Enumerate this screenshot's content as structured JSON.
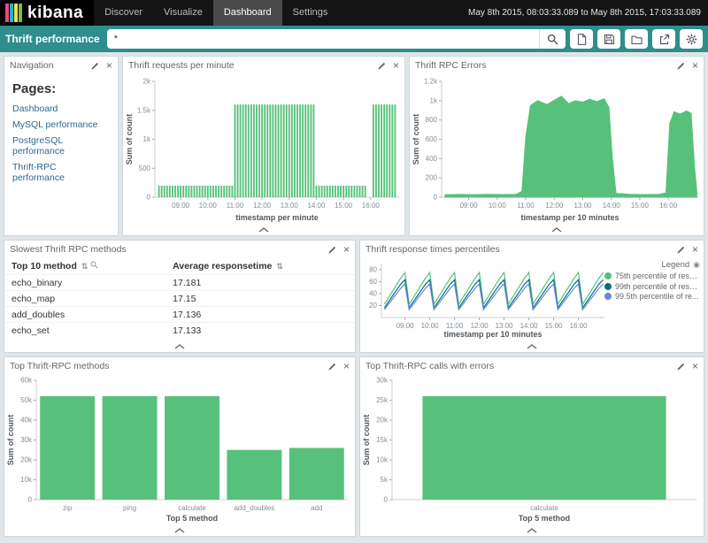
{
  "topbar": {
    "logo": "kibana",
    "nav": [
      {
        "label": "Discover",
        "active": false
      },
      {
        "label": "Visualize",
        "active": false
      },
      {
        "label": "Dashboard",
        "active": true
      },
      {
        "label": "Settings",
        "active": false
      }
    ],
    "time_range": "May 8th 2015, 08:03:33.089 to May 8th 2015, 17:03:33.089"
  },
  "querybar": {
    "title": "Thrift performance",
    "query": "*",
    "icons": [
      "search-icon",
      "new-dashboard-icon",
      "save-dashboard-icon",
      "load-dashboard-icon",
      "share-dashboard-icon",
      "settings-gear-icon"
    ]
  },
  "glyphs": {
    "close": "×",
    "sort": "⇅",
    "legend_toggle": "◉"
  },
  "panels": {
    "navigation": {
      "title": "Navigation",
      "heading": "Pages:",
      "links": [
        "Dashboard",
        "MySQL performance",
        "PostgreSQL performance",
        "Thrift-RPC performance"
      ]
    },
    "requests": {
      "title": "Thrift requests per minute"
    },
    "errors": {
      "title": "Thrift RPC Errors"
    },
    "slowest": {
      "title": "Slowest Thrift RPC methods",
      "table": {
        "columns": [
          "Top 10 method",
          "Average responsetime"
        ],
        "rows": [
          [
            "echo_binary",
            "17.181"
          ],
          [
            "echo_map",
            "17.15"
          ],
          [
            "add_doubles",
            "17.136"
          ],
          [
            "echo_set",
            "17.133"
          ]
        ]
      }
    },
    "percentiles": {
      "title": "Thrift response times percentiles",
      "legend_title": "Legend"
    },
    "top_methods": {
      "title": "Top Thrift-RPC methods"
    },
    "top_errors": {
      "title": "Top Thrift-RPC calls with errors"
    }
  },
  "colors": {
    "green": "#57c17b",
    "navy": "#006e8a",
    "periwinkle": "#6f87d8",
    "teal_bar": "#2e8d8d",
    "topbar": "#141414",
    "logo_stripes": [
      "#e8488b",
      "#19b8c6",
      "#f2de54",
      "#80bb44"
    ]
  },
  "chart_data": {
    "requests": {
      "type": "bar",
      "title": "Thrift requests per minute",
      "xlabel": "timestamp per minute",
      "ylabel": "Sum of count",
      "color": "#57c17b",
      "x_domain": [
        "08:03",
        "17:03"
      ],
      "x_ticks": [
        "09:00",
        "10:00",
        "11:00",
        "12:00",
        "13:00",
        "14:00",
        "15:00",
        "16:00"
      ],
      "ylim": [
        0,
        2000
      ],
      "y_ticks": [
        {
          "v": 0,
          "l": "0"
        },
        {
          "v": 500,
          "l": "500"
        },
        {
          "v": 1000,
          "l": "1k"
        },
        {
          "v": 1500,
          "l": "1.5k"
        },
        {
          "v": 2000,
          "l": "2k"
        }
      ],
      "bucket_minutes": 6,
      "segments": [
        {
          "from": "08:12",
          "to": "10:58",
          "value": 200
        },
        {
          "from": "11:00",
          "to": "13:58",
          "value": 1600
        },
        {
          "from": "14:00",
          "to": "15:52",
          "value": 200
        },
        {
          "from": "16:06",
          "to": "16:58",
          "value": 1600
        }
      ]
    },
    "errors": {
      "type": "area",
      "title": "Thrift RPC Errors",
      "xlabel": "timestamp per 10 minutes",
      "ylabel": "Sum of count",
      "color": "#57c17b",
      "x_domain": [
        "08:03",
        "17:03"
      ],
      "x_ticks": [
        "09:00",
        "10:00",
        "11:00",
        "12:00",
        "13:00",
        "14:00",
        "15:00",
        "16:00"
      ],
      "ylim": [
        0,
        1200
      ],
      "y_ticks": [
        {
          "v": 0,
          "l": "0"
        },
        {
          "v": 200,
          "l": "200"
        },
        {
          "v": 400,
          "l": "400"
        },
        {
          "v": 600,
          "l": "600"
        },
        {
          "v": 800,
          "l": "800"
        },
        {
          "v": 1000,
          "l": "1k"
        },
        {
          "v": 1200,
          "l": "1.2k"
        }
      ],
      "points": [
        [
          "08:10",
          25
        ],
        [
          "08:40",
          30
        ],
        [
          "09:10",
          26
        ],
        [
          "09:40",
          30
        ],
        [
          "10:10",
          27
        ],
        [
          "10:40",
          30
        ],
        [
          "10:52",
          60
        ],
        [
          "11:00",
          620
        ],
        [
          "11:10",
          950
        ],
        [
          "11:25",
          1000
        ],
        [
          "11:45",
          960
        ],
        [
          "12:00",
          1005
        ],
        [
          "12:15",
          1045
        ],
        [
          "12:30",
          970
        ],
        [
          "12:45",
          1000
        ],
        [
          "13:00",
          985
        ],
        [
          "13:15",
          1015
        ],
        [
          "13:30",
          990
        ],
        [
          "13:45",
          1020
        ],
        [
          "13:55",
          930
        ],
        [
          "14:02",
          420
        ],
        [
          "14:10",
          40
        ],
        [
          "14:40",
          30
        ],
        [
          "15:10",
          28
        ],
        [
          "15:40",
          30
        ],
        [
          "15:55",
          45
        ],
        [
          "16:03",
          760
        ],
        [
          "16:12",
          885
        ],
        [
          "16:25",
          860
        ],
        [
          "16:38",
          895
        ],
        [
          "16:48",
          870
        ],
        [
          "16:55",
          320
        ],
        [
          "17:00",
          55
        ]
      ]
    },
    "percentiles": {
      "type": "line",
      "title": "Thrift response times percentiles",
      "xlabel": "timestamp per 10 minutes",
      "ylabel": "",
      "x_domain": [
        "08:03",
        "17:03"
      ],
      "x_ticks": [
        "09:00",
        "10:00",
        "11:00",
        "12:00",
        "13:00",
        "14:00",
        "15:00",
        "16:00"
      ],
      "ylim": [
        0,
        90
      ],
      "y_ticks": [
        {
          "v": 20,
          "l": "20"
        },
        {
          "v": 40,
          "l": "40"
        },
        {
          "v": 60,
          "l": "60"
        },
        {
          "v": 80,
          "l": "80"
        }
      ],
      "x_start": "08:10",
      "x_step_minutes": 10,
      "legend_labels": [
        "75th percentile of resp...",
        "99th percentile of resp...",
        "99.5th percentile of re..."
      ],
      "series": [
        {
          "name": "75th percentile of resp...",
          "color": "#57c17b",
          "values": [
            22,
            33,
            44,
            55,
            66,
            75,
            22,
            33,
            44,
            55,
            66,
            75,
            22,
            33,
            44,
            55,
            66,
            75,
            22,
            33,
            44,
            55,
            66,
            75,
            22,
            33,
            44,
            55,
            66,
            75,
            22,
            33,
            44,
            55,
            66,
            75,
            22,
            33,
            44,
            55,
            66,
            75,
            22,
            33,
            44,
            55,
            66,
            75,
            22,
            33,
            44,
            55,
            66,
            75
          ]
        },
        {
          "name": "99th percentile of resp...",
          "color": "#006e8a",
          "values": [
            16,
            26,
            36,
            46,
            56,
            63,
            16,
            26,
            36,
            46,
            56,
            63,
            16,
            26,
            36,
            46,
            56,
            63,
            16,
            26,
            36,
            46,
            56,
            63,
            16,
            26,
            36,
            46,
            56,
            63,
            16,
            26,
            36,
            46,
            56,
            63,
            16,
            26,
            36,
            46,
            56,
            63,
            16,
            26,
            36,
            46,
            56,
            63,
            16,
            26,
            36,
            46,
            56,
            63
          ]
        },
        {
          "name": "99.5th percentile of re...",
          "color": "#6f87d8",
          "values": [
            13,
            22,
            31,
            40,
            49,
            56,
            13,
            22,
            31,
            40,
            49,
            56,
            13,
            22,
            31,
            40,
            49,
            56,
            13,
            22,
            31,
            40,
            49,
            56,
            13,
            22,
            31,
            40,
            49,
            56,
            13,
            22,
            31,
            40,
            49,
            56,
            13,
            22,
            31,
            40,
            49,
            56,
            13,
            22,
            31,
            40,
            49,
            56,
            13,
            22,
            31,
            40,
            49,
            56
          ]
        }
      ]
    },
    "top_methods": {
      "type": "catbar",
      "title": "Top Thrift-RPC methods",
      "xlabel": "Top 5 method",
      "ylabel": "Sum of count",
      "color": "#57c17b",
      "categories": [
        "zip",
        "ping",
        "calculate",
        "add_doubles",
        "add"
      ],
      "values": [
        52000,
        52000,
        52000,
        25000,
        26000
      ],
      "ylim": [
        0,
        60000
      ],
      "y_ticks": [
        {
          "v": 0,
          "l": "0"
        },
        {
          "v": 10000,
          "l": "10k"
        },
        {
          "v": 20000,
          "l": "20k"
        },
        {
          "v": 30000,
          "l": "30k"
        },
        {
          "v": 40000,
          "l": "40k"
        },
        {
          "v": 50000,
          "l": "50k"
        },
        {
          "v": 60000,
          "l": "60k"
        }
      ]
    },
    "top_errors": {
      "type": "catbar",
      "title": "Top Thrift-RPC calls with errors",
      "xlabel": "Top 5 method",
      "ylabel": "Sum of count",
      "color": "#57c17b",
      "categories": [
        "calculate"
      ],
      "values": [
        26000
      ],
      "ylim": [
        0,
        30000
      ],
      "y_ticks": [
        {
          "v": 0,
          "l": "0"
        },
        {
          "v": 5000,
          "l": "5k"
        },
        {
          "v": 10000,
          "l": "10k"
        },
        {
          "v": 15000,
          "l": "15k"
        },
        {
          "v": 20000,
          "l": "20k"
        },
        {
          "v": 25000,
          "l": "25k"
        },
        {
          "v": 30000,
          "l": "30k"
        }
      ]
    }
  }
}
